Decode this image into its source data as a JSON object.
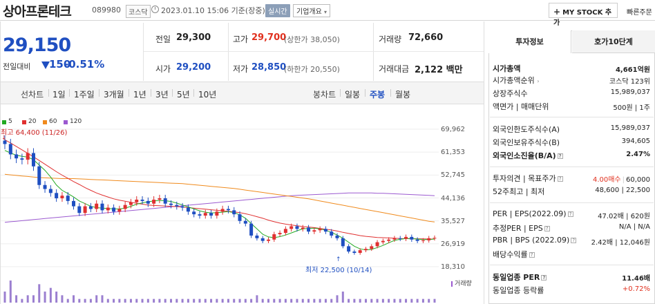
{
  "header": {
    "stock_name": "상아프론테크",
    "stock_code": "089980",
    "market": "코스닥",
    "datetime": "2023.01.10 15:06 기준(장중)",
    "realtime": "실시간",
    "company_overview": "기업개요",
    "mystock": "MY STOCK 추가",
    "quick_order": "빠른주문"
  },
  "price": {
    "current": "29,150",
    "diff_label": "전일대비",
    "diff_value": "150",
    "diff_pct": "-0.51%",
    "prev_close_label": "전일",
    "prev_close": "29,300",
    "high_label": "고가",
    "high": "29,700",
    "upper_limit": "(상한가 38,050)",
    "volume_label": "거래량",
    "volume": "72,660",
    "open_label": "시가",
    "open": "29,200",
    "low_label": "저가",
    "low": "28,850",
    "lower_limit": "(하한가 20,550)",
    "amount_label": "거래대금",
    "amount": "2,122 백만"
  },
  "period_tabs": {
    "line_label": "선차트",
    "line": [
      "1일",
      "1주일",
      "3개월",
      "1년",
      "3년",
      "5년",
      "10년"
    ],
    "candle_label": "봉차트",
    "candle": [
      "일봉",
      "주봉",
      "월봉"
    ],
    "selected": "주봉"
  },
  "chart_data": {
    "type": "candlestick",
    "moving_averages": [
      {
        "name": "5",
        "color": "#22aa22"
      },
      {
        "name": "20",
        "color": "#e03030"
      },
      {
        "name": "60",
        "color": "#f08a1c"
      },
      {
        "name": "120",
        "color": "#9b59d0"
      }
    ],
    "y_ticks": [
      "69,962",
      "61,353",
      "52,745",
      "44,136",
      "35,527",
      "26,919",
      "18,310"
    ],
    "ylim": [
      18310,
      69962
    ],
    "max_label": "최고 64,400 (11/26)",
    "min_label": "최저 22,500 (10/14)",
    "volume_label": "거래량",
    "closes": [
      64400,
      60500,
      59000,
      58500,
      61000,
      56000,
      49000,
      47500,
      46000,
      44000,
      45000,
      43000,
      41000,
      38500,
      41000,
      40000,
      42000,
      39500,
      40500,
      39000,
      40000,
      41500,
      42500,
      43500,
      43000,
      42000,
      43500,
      44000,
      42000,
      41500,
      41000,
      40500,
      39000,
      38000,
      37500,
      38500,
      37500,
      39000,
      40000,
      39500,
      38000,
      35500,
      34500,
      30000,
      29000,
      28000,
      28500,
      30500,
      31000,
      32500,
      33500,
      32500,
      33000,
      31500,
      32000,
      32500,
      31500,
      30000,
      29000,
      26000,
      24000,
      23500,
      24500,
      25000,
      26000,
      27500,
      28000,
      28500,
      29000,
      28800,
      29500,
      28500,
      28000,
      28200,
      29000,
      29150
    ],
    "ma20": [
      66000,
      64800,
      63500,
      62200,
      60900,
      59600,
      58200,
      56800,
      55400,
      54000,
      52700,
      51500,
      50300,
      49200,
      48000,
      47000,
      46000,
      45200,
      44500,
      43800,
      43300,
      42900,
      42500,
      42100,
      41800,
      41500,
      41300,
      41200,
      41100,
      41000,
      40900,
      40700,
      40500,
      40300,
      40100,
      39900,
      39700,
      39500,
      39300,
      39100,
      38900,
      38600,
      38200,
      37700,
      37100,
      36500,
      35800,
      35200,
      34700,
      34300,
      34000,
      33700,
      33400,
      33200,
      33000,
      32700,
      32400,
      32100,
      31700,
      31200,
      30800,
      30400,
      30000,
      29700,
      29500,
      29300,
      29200,
      29100,
      29000,
      28900,
      28850,
      28800,
      28800,
      28750,
      28700,
      28700
    ],
    "ma60": [
      53000,
      52800,
      52600,
      52400,
      52200,
      52000,
      51800,
      51700,
      51600,
      51500,
      51400,
      51400,
      51400,
      51300,
      51200,
      51100,
      51000,
      50900,
      50800,
      50700,
      50600,
      50500,
      50400,
      50300,
      50200,
      50100,
      50000,
      49900,
      49800,
      49700,
      49600,
      49500,
      49300,
      49100,
      48900,
      48700,
      48500,
      48300,
      48100,
      47900,
      47700,
      47400,
      47100,
      46800,
      46500,
      46200,
      45900,
      45600,
      45300,
      45000,
      44700,
      44400,
      44100,
      43800,
      43400,
      43000,
      42600,
      42200,
      41800,
      41400,
      41000,
      40600,
      40200,
      39800,
      39400,
      39000,
      38600,
      38200,
      37800,
      37400,
      37000,
      36600,
      36200,
      35800,
      35400,
      35100
    ],
    "ma120": [
      35000,
      35200,
      35400,
      35600,
      35800,
      36000,
      36200,
      36400,
      36600,
      36800,
      37000,
      37200,
      37400,
      37600,
      37800,
      38000,
      38200,
      38400,
      38600,
      38800,
      39000,
      39200,
      39400,
      39600,
      39800,
      40000,
      40200,
      40400,
      40600,
      40800,
      41000,
      41200,
      41400,
      41600,
      41800,
      42000,
      42200,
      42400,
      42600,
      42800,
      43000,
      43200,
      43400,
      43600,
      43800,
      44000,
      44200,
      44400,
      44600,
      44800,
      45000,
      45100,
      45200,
      45300,
      45400,
      45500,
      45600,
      45700,
      45800,
      45900,
      46000,
      46000,
      46000,
      46000,
      46000,
      45900,
      45900,
      45800,
      45700,
      45600,
      45500,
      45400,
      45300,
      45200,
      45100,
      45000
    ],
    "ma5": [
      62000,
      61000,
      60200,
      59800,
      59500,
      58500,
      56500,
      54500,
      52000,
      49000,
      47000,
      45800,
      44500,
      43000,
      42000,
      41000,
      40500,
      40300,
      40200,
      40000,
      40000,
      40300,
      41000,
      41800,
      42300,
      42700,
      43000,
      43200,
      43100,
      42800,
      42200,
      41500,
      40800,
      40000,
      39300,
      38800,
      38500,
      38600,
      38800,
      39000,
      38600,
      37800,
      36500,
      34500,
      32500,
      30500,
      29500,
      29200,
      29600,
      30200,
      31000,
      31800,
      32500,
      32700,
      32800,
      32500,
      32000,
      31200,
      30200,
      29000,
      27500,
      26000,
      25000,
      24600,
      24800,
      25500,
      26300,
      27300,
      28200,
      28600,
      28900,
      28900,
      28700,
      28500,
      28500,
      28700
    ],
    "volumes": [
      3,
      6,
      2,
      1,
      2,
      2,
      5,
      3,
      4,
      3,
      2,
      1,
      2,
      1,
      1,
      1,
      2,
      2,
      1,
      1,
      1,
      1,
      1,
      1,
      1,
      1,
      1,
      1,
      1,
      1,
      1,
      1,
      1,
      1,
      1,
      1,
      1,
      1,
      1,
      1,
      1,
      1,
      1,
      1,
      2,
      1,
      1,
      1,
      1,
      1,
      1,
      1,
      1,
      1,
      1,
      1,
      1,
      1,
      2,
      3,
      1,
      1,
      1,
      1,
      1,
      1,
      1,
      1,
      1,
      1,
      1,
      1,
      1,
      1,
      1,
      1
    ]
  },
  "right_panel": {
    "tab_invest": "투자정보",
    "tab_ask": "호가10단계",
    "rows1": [
      {
        "label": "시가총액",
        "value": "4,661억원",
        "bold": true
      },
      {
        "label": "시가총액순위",
        "value": "코스닥 123위"
      },
      {
        "label": "상장주식수",
        "value": "15,989,037"
      },
      {
        "label": "액면가 | 매매단위",
        "value": "500원 | 1주"
      }
    ],
    "rows2": [
      {
        "label": "외국인한도주식수(A)",
        "value": "15,989,037"
      },
      {
        "label": "외국인보유주식수(B)",
        "value": "394,605"
      },
      {
        "label": "외국인소진율(B/A)",
        "value": "2.47%",
        "bold": true
      }
    ],
    "rows3": [
      {
        "label": "투자의견 | 목표주가",
        "value": "4.00매수 | 60,000"
      },
      {
        "label": "52주최고 | 최저",
        "value": "48,600 | 22,500"
      }
    ],
    "rows4": [
      {
        "label": "PER | EPS(2022.09)",
        "value": "47.02배 | 620원"
      },
      {
        "label": "추정PER | EPS",
        "value": "N/A | N/A"
      },
      {
        "label": "PBR | BPS (2022.09)",
        "value": "2.42배 | 12,046원"
      },
      {
        "label": "배당수익률",
        "value": ""
      }
    ],
    "rows5": [
      {
        "label": "동일업종 PER",
        "value": "11.46배",
        "bold": true
      },
      {
        "label": "동일업종 등락률",
        "value": "+0.72%"
      }
    ]
  }
}
